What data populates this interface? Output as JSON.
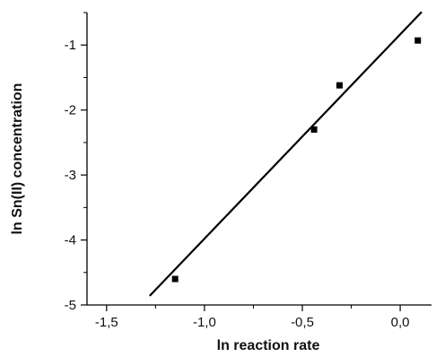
{
  "chart_data": {
    "type": "scatter",
    "xlabel": "ln reaction rate",
    "ylabel": "ln Sn(II) concentration",
    "xlim": [
      -1.6,
      0.16
    ],
    "ylim": [
      -5.0,
      -0.5
    ],
    "x_ticks": [
      -1.5,
      -1.0,
      -0.5,
      0.0
    ],
    "x_tick_labels": [
      "-1,5",
      "-1,0",
      "-0,5",
      "0,0"
    ],
    "y_ticks": [
      -5,
      -4,
      -3,
      -2,
      -1
    ],
    "y_tick_labels": [
      "-5",
      "-4",
      "-3",
      "-2",
      "-1"
    ],
    "grid": false,
    "legend": "none",
    "points": [
      {
        "x": -1.15,
        "y": -4.6
      },
      {
        "x": -0.44,
        "y": -2.3
      },
      {
        "x": -0.31,
        "y": -1.62
      },
      {
        "x": 0.09,
        "y": -0.93
      }
    ],
    "fit_line": {
      "x": [
        -1.28,
        0.11
      ],
      "y": [
        -4.86,
        -0.49
      ]
    },
    "colors": {
      "marker": "#000000",
      "line": "#000000",
      "axis": "#000000"
    }
  }
}
